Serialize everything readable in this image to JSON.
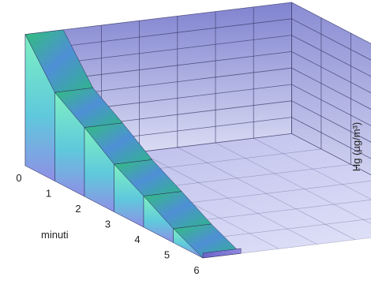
{
  "chart_data": {
    "type": "area",
    "view": "3d-ribbon",
    "x": [
      0,
      1,
      2,
      3,
      4,
      5,
      6
    ],
    "values": [
      16,
      10.8,
      8.4,
      5.8,
      3.8,
      1.7,
      0
    ],
    "xlabel": "minuti",
    "ylabel": "Hg (µg/m³)",
    "ylim": [
      0,
      16
    ],
    "y_ticks": [
      "0",
      "2",
      "4",
      "6",
      "8",
      "10",
      "12",
      "14",
      "16"
    ],
    "x_ticks": [
      "0",
      "1",
      "2",
      "3",
      "4",
      "5",
      "6"
    ],
    "grid": true,
    "colors": {
      "wall": "#8d8fd6",
      "wall_light": "#d9dcf5",
      "grid": "#3a3a6a",
      "ribbon_top_a": "#3fc08a",
      "ribbon_top_b": "#4a6fd2",
      "ribbon_front_a": "#6ed6cf",
      "ribbon_front_b": "#7078d8",
      "floor": "#c9cbf0"
    }
  }
}
